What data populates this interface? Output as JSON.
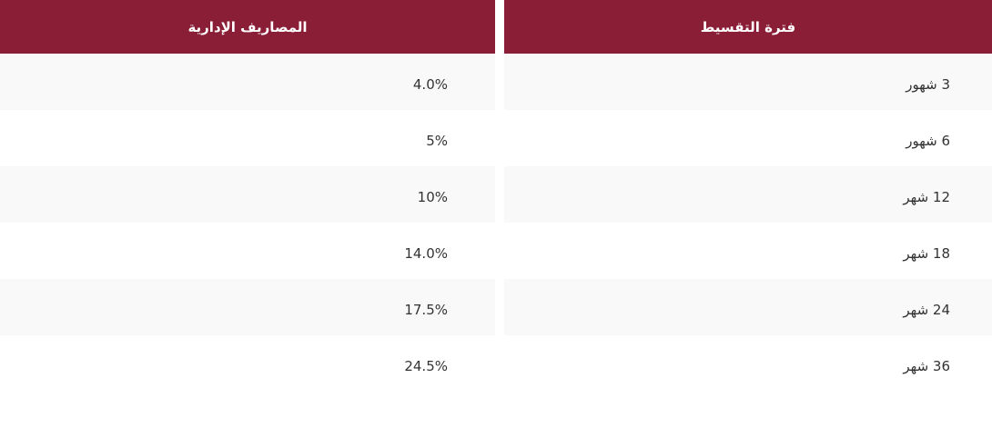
{
  "table": {
    "headers": {
      "period": "فترة التقسيط",
      "fees": "المصاريف الإدارية"
    },
    "rows": [
      {
        "period": "3 شهور",
        "fees": "4.0%"
      },
      {
        "period": "6 شهور",
        "fees": "5%"
      },
      {
        "period": "12 شهر",
        "fees": "10%"
      },
      {
        "period": "18 شهر",
        "fees": "14.0%"
      },
      {
        "period": "24 شهر",
        "fees": "17.5%"
      },
      {
        "period": "36 شهر",
        "fees": "24.5%"
      }
    ]
  },
  "colors": {
    "header_bg": "#8a1e36",
    "row_shade": "#f9f9f9"
  }
}
